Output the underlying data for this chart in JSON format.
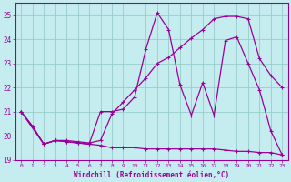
{
  "bg_color": "#c5ecee",
  "grid_color": "#99cccc",
  "line_color": "#990099",
  "xlabel": "Windchill (Refroidissement éolien,°C)",
  "xlim": [
    -0.5,
    23.5
  ],
  "ylim": [
    19.0,
    25.5
  ],
  "yticks": [
    19,
    20,
    21,
    22,
    23,
    24,
    25
  ],
  "xticks": [
    0,
    1,
    2,
    3,
    4,
    5,
    6,
    7,
    8,
    9,
    10,
    11,
    12,
    13,
    14,
    15,
    16,
    17,
    18,
    19,
    20,
    21,
    22,
    23
  ],
  "s1_x": [
    0,
    1,
    2,
    3,
    4,
    5,
    6,
    7,
    8,
    9,
    10,
    11,
    12,
    13,
    14,
    15,
    16,
    17,
    18,
    19,
    20,
    21,
    22,
    23
  ],
  "s1_y": [
    21.0,
    20.4,
    19.65,
    19.8,
    19.75,
    19.7,
    19.65,
    19.6,
    19.5,
    19.5,
    19.5,
    19.45,
    19.45,
    19.45,
    19.45,
    19.45,
    19.45,
    19.45,
    19.4,
    19.35,
    19.35,
    19.3,
    19.3,
    19.2
  ],
  "s2_x": [
    0,
    1,
    2,
    3,
    4,
    5,
    6,
    7,
    8,
    9,
    10,
    11,
    12,
    13,
    14,
    15,
    16,
    17,
    18,
    19,
    20,
    21,
    22,
    23
  ],
  "s2_y": [
    21.0,
    20.4,
    19.65,
    19.8,
    19.75,
    19.7,
    19.65,
    21.0,
    21.0,
    21.1,
    21.6,
    23.6,
    25.1,
    24.4,
    22.1,
    20.85,
    22.2,
    20.85,
    23.95,
    24.1,
    23.0,
    21.9,
    20.2,
    19.2
  ],
  "s3_x": [
    0,
    2,
    3,
    4,
    5,
    6,
    7,
    8,
    9,
    10,
    11,
    12,
    13,
    14,
    15,
    16,
    17,
    18,
    19,
    20,
    21,
    22,
    23
  ],
  "s3_y": [
    21.0,
    19.65,
    19.8,
    19.8,
    19.75,
    19.7,
    19.8,
    20.9,
    21.4,
    21.9,
    22.4,
    23.0,
    23.25,
    23.65,
    24.05,
    24.4,
    24.85,
    24.95,
    24.95,
    24.85,
    23.2,
    22.5,
    22.0
  ]
}
